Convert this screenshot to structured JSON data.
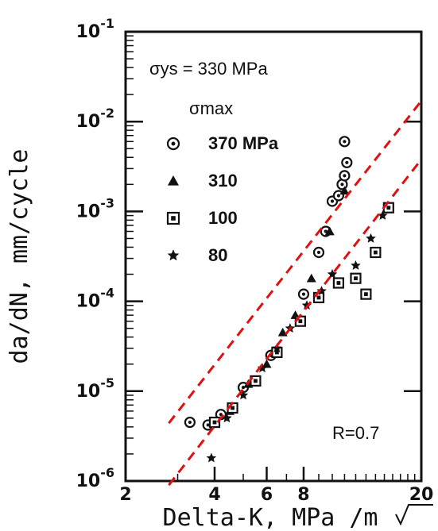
{
  "chart_data": {
    "type": "scatter",
    "title": "",
    "xlabel": "Delta-K,  MPa /m",
    "ylabel": "da/dN,  mm/cycle",
    "x_scale": "log",
    "y_scale": "log",
    "xlim": [
      2,
      20
    ],
    "ylim": [
      1e-06,
      0.1
    ],
    "x_ticks": [
      2,
      4,
      6,
      8,
      20
    ],
    "x_tick_labels": [
      "2",
      "4",
      "6",
      "8",
      "20"
    ],
    "y_ticks": [
      0.1,
      0.01,
      0.001,
      0.0001,
      1e-05,
      1e-06
    ],
    "y_tick_labels": [
      {
        "base": "10",
        "exp": "-1"
      },
      {
        "base": "10",
        "exp": "-2"
      },
      {
        "base": "10",
        "exp": "-3"
      },
      {
        "base": "10",
        "exp": "-4"
      },
      {
        "base": "10",
        "exp": "-5"
      },
      {
        "base": "10",
        "exp": "-6"
      }
    ],
    "grid": false,
    "legend_position": "top-left",
    "legend_title": "σmax",
    "annotations": {
      "yield_stress": "σys = 330 MPa",
      "ratio": "R=0.7"
    },
    "colors": {
      "marker": "#111111",
      "band": "#e01010",
      "frame": "#111111"
    },
    "series": [
      {
        "name": "370 MPa",
        "marker": "circle",
        "points": [
          [
            3.3,
            4.5e-06
          ],
          [
            3.8,
            4.2e-06
          ],
          [
            4.2,
            5.5e-06
          ],
          [
            5.0,
            1.1e-05
          ],
          [
            6.2,
            2.5e-05
          ],
          [
            8.0,
            0.00012
          ],
          [
            9.0,
            0.00035
          ],
          [
            9.5,
            0.0006
          ],
          [
            10.0,
            0.0013
          ],
          [
            10.5,
            0.0015
          ],
          [
            10.8,
            0.002
          ],
          [
            11.0,
            0.0025
          ],
          [
            11.2,
            0.0035
          ],
          [
            11.0,
            0.006
          ]
        ]
      },
      {
        "name": "310",
        "marker": "triangle",
        "points": [
          [
            4.5,
            6e-06
          ],
          [
            5.2,
            1.2e-05
          ],
          [
            6.0,
            2e-05
          ],
          [
            6.8,
            4.5e-05
          ],
          [
            7.5,
            7e-05
          ],
          [
            8.5,
            0.00018
          ],
          [
            9.8,
            0.0006
          ],
          [
            11.0,
            0.0017
          ]
        ]
      },
      {
        "name": "100",
        "marker": "square",
        "points": [
          [
            4.0,
            4.5e-06
          ],
          [
            4.6,
            6.5e-06
          ],
          [
            5.5,
            1.3e-05
          ],
          [
            6.5,
            2.7e-05
          ],
          [
            7.8,
            6e-05
          ],
          [
            9.0,
            0.00011
          ],
          [
            10.5,
            0.00016
          ],
          [
            12.0,
            0.00018
          ],
          [
            13.0,
            0.00012
          ],
          [
            14.0,
            0.00035
          ],
          [
            15.5,
            0.0011
          ]
        ]
      },
      {
        "name": "80",
        "marker": "star",
        "points": [
          [
            3.9,
            1.8e-06
          ],
          [
            4.4,
            5e-06
          ],
          [
            5.0,
            9e-06
          ],
          [
            5.8,
            1.8e-05
          ],
          [
            6.5,
            3e-05
          ],
          [
            7.2,
            5e-05
          ],
          [
            8.2,
            9e-05
          ],
          [
            9.2,
            0.00013
          ],
          [
            10.0,
            0.0002
          ],
          [
            12.0,
            0.00025
          ],
          [
            13.5,
            0.0005
          ],
          [
            14.8,
            0.0009
          ]
        ]
      }
    ],
    "bands": [
      {
        "x": [
          2.8,
          20.0
        ],
        "y": [
          4.4e-06,
          0.017
        ]
      },
      {
        "x": [
          2.8,
          20.0
        ],
        "y": [
          9e-07,
          0.0038
        ]
      }
    ]
  }
}
